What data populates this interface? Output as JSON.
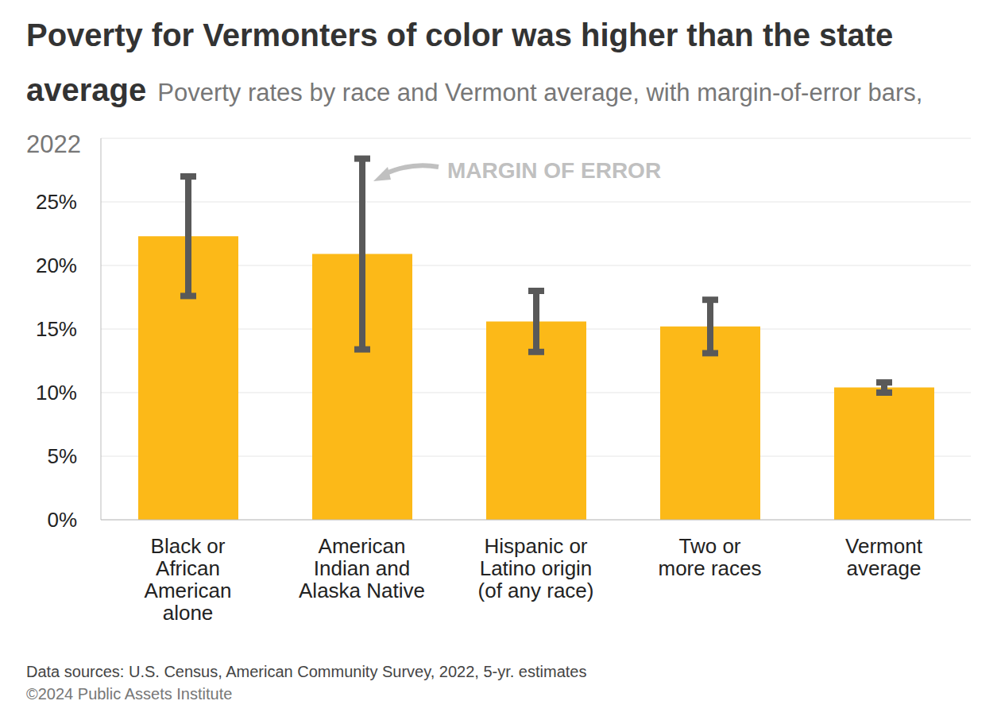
{
  "chart_data": {
    "type": "bar",
    "title": "Poverty for Vermonters of color was higher than the state average",
    "subtitle": "Poverty rates by race and Vermont average, with margin-of-error bars, 2022",
    "categories": [
      "Black or African American alone",
      "American Indian and Alaska Native",
      "Hispanic or Latino origin (of any race)",
      "Two or more races",
      "Vermont average"
    ],
    "values": [
      22.3,
      20.9,
      15.6,
      15.2,
      10.4
    ],
    "margin_of_error": [
      4.7,
      7.5,
      2.4,
      2.1,
      0.4
    ],
    "color": "#fcb918",
    "ylim": [
      0,
      30
    ],
    "yticks": [
      {
        "value": 0,
        "label": "0%"
      },
      {
        "value": 5,
        "label": "5%"
      },
      {
        "value": 10,
        "label": "10%"
      },
      {
        "value": 15,
        "label": "15%"
      },
      {
        "value": 20,
        "label": "20%"
      },
      {
        "value": 25,
        "label": "25%"
      }
    ],
    "grid": true,
    "annotation": "MARGIN OF ERROR",
    "source": "Data sources: U.S. Census, American Community Survey, 2022, 5-yr. estimates",
    "copyright": "©2024 Public Assets Institute"
  }
}
